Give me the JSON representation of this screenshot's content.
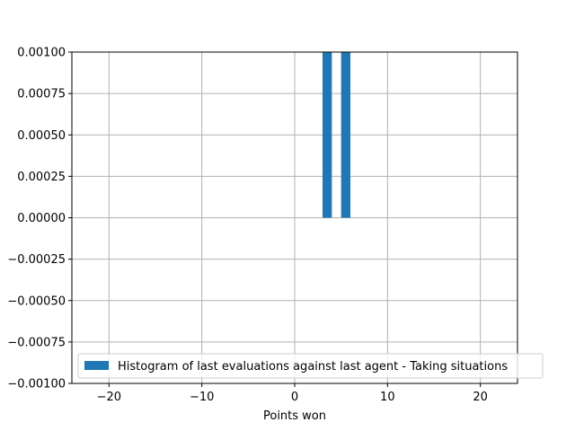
{
  "chart_data": {
    "type": "bar",
    "title": "",
    "xlabel": "Points won",
    "ylabel": "",
    "xlim": [
      -24,
      24
    ],
    "ylim": [
      -0.001,
      0.001
    ],
    "grid": true,
    "legend_placement": "lower-right",
    "x_ticks": [
      {
        "value": -20,
        "label": "−20"
      },
      {
        "value": -10,
        "label": "−10"
      },
      {
        "value": 0,
        "label": "0"
      },
      {
        "value": 10,
        "label": "10"
      },
      {
        "value": 20,
        "label": "20"
      }
    ],
    "y_ticks": [
      {
        "value": 0.001,
        "label": "0.00100"
      },
      {
        "value": 0.00075,
        "label": "0.00075"
      },
      {
        "value": 0.0005,
        "label": "0.00050"
      },
      {
        "value": 0.00025,
        "label": "0.00025"
      },
      {
        "value": 0,
        "label": "0.00000"
      },
      {
        "value": -0.00025,
        "label": "−0.00025"
      },
      {
        "value": -0.0005,
        "label": "−0.00050"
      },
      {
        "value": -0.00075,
        "label": "−0.00075"
      },
      {
        "value": -0.001,
        "label": "−0.00100"
      }
    ],
    "series": [
      {
        "name": "Histogram of last evaluations against last agent - Taking situations",
        "color": "#1f77b4",
        "bars": [
          {
            "x0": 3,
            "x1": 4,
            "value": 0.001
          },
          {
            "x0": 5,
            "x1": 6,
            "value": 0.001
          }
        ]
      }
    ]
  }
}
